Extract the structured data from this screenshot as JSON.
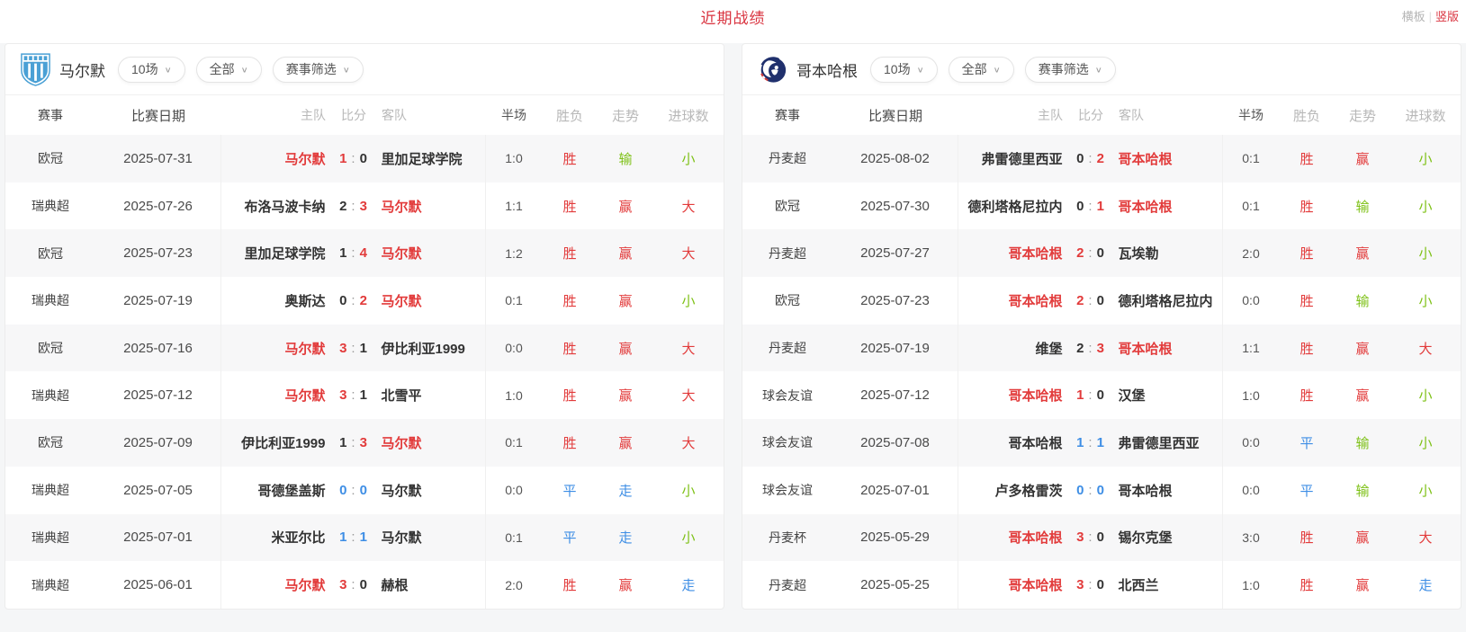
{
  "page": {
    "title": "近期战绩",
    "layout_toggle": {
      "horizontal": "横板",
      "separator": "|",
      "vertical": "竖版"
    }
  },
  "colors": {
    "title_red": "#d9333f",
    "win_red": "#e23b3b",
    "lose_green": "#7ec117",
    "draw_blue": "#3e8ee5",
    "text_dark": "#333333"
  },
  "filters": [
    "10场",
    "全部",
    "赛事筛选"
  ],
  "columns": [
    "赛事",
    "比赛日期",
    "主队",
    "比分",
    "客队",
    "半场",
    "胜负",
    "走势",
    "进球数"
  ],
  "panels": [
    {
      "team": "马尔默",
      "logo": "malmo-crest",
      "rows": [
        {
          "event": "欧冠",
          "date": "2025-07-31",
          "home": "马尔默",
          "home_color": "red",
          "away": "里加足球学院",
          "away_color": "dark",
          "score": {
            "home": "1",
            "away": "0",
            "home_color": "red",
            "away_color": "dark"
          },
          "half": "1:0",
          "result": "胜",
          "result_color": "red",
          "trend": "输",
          "trend_color": "green",
          "goals": "小",
          "goals_color": "green"
        },
        {
          "event": "瑞典超",
          "date": "2025-07-26",
          "home": "布洛马波卡纳",
          "home_color": "dark",
          "away": "马尔默",
          "away_color": "red",
          "score": {
            "home": "2",
            "away": "3",
            "home_color": "dark",
            "away_color": "red"
          },
          "half": "1:1",
          "result": "胜",
          "result_color": "red",
          "trend": "赢",
          "trend_color": "red",
          "goals": "大",
          "goals_color": "red"
        },
        {
          "event": "欧冠",
          "date": "2025-07-23",
          "home": "里加足球学院",
          "home_color": "dark",
          "away": "马尔默",
          "away_color": "red",
          "score": {
            "home": "1",
            "away": "4",
            "home_color": "dark",
            "away_color": "red"
          },
          "half": "1:2",
          "result": "胜",
          "result_color": "red",
          "trend": "赢",
          "trend_color": "red",
          "goals": "大",
          "goals_color": "red"
        },
        {
          "event": "瑞典超",
          "date": "2025-07-19",
          "home": "奥斯达",
          "home_color": "dark",
          "away": "马尔默",
          "away_color": "red",
          "score": {
            "home": "0",
            "away": "2",
            "home_color": "dark",
            "away_color": "red"
          },
          "half": "0:1",
          "result": "胜",
          "result_color": "red",
          "trend": "赢",
          "trend_color": "red",
          "goals": "小",
          "goals_color": "green"
        },
        {
          "event": "欧冠",
          "date": "2025-07-16",
          "home": "马尔默",
          "home_color": "red",
          "away": "伊比利亚1999",
          "away_color": "dark",
          "score": {
            "home": "3",
            "away": "1",
            "home_color": "red",
            "away_color": "dark"
          },
          "half": "0:0",
          "result": "胜",
          "result_color": "red",
          "trend": "赢",
          "trend_color": "red",
          "goals": "大",
          "goals_color": "red"
        },
        {
          "event": "瑞典超",
          "date": "2025-07-12",
          "home": "马尔默",
          "home_color": "red",
          "away": "北雪平",
          "away_color": "dark",
          "score": {
            "home": "3",
            "away": "1",
            "home_color": "red",
            "away_color": "dark"
          },
          "half": "1:0",
          "result": "胜",
          "result_color": "red",
          "trend": "赢",
          "trend_color": "red",
          "goals": "大",
          "goals_color": "red"
        },
        {
          "event": "欧冠",
          "date": "2025-07-09",
          "home": "伊比利亚1999",
          "home_color": "dark",
          "away": "马尔默",
          "away_color": "red",
          "score": {
            "home": "1",
            "away": "3",
            "home_color": "dark",
            "away_color": "red"
          },
          "half": "0:1",
          "result": "胜",
          "result_color": "red",
          "trend": "赢",
          "trend_color": "red",
          "goals": "大",
          "goals_color": "red"
        },
        {
          "event": "瑞典超",
          "date": "2025-07-05",
          "home": "哥德堡盖斯",
          "home_color": "dark",
          "away": "马尔默",
          "away_color": "dark",
          "score": {
            "home": "0",
            "away": "0",
            "home_color": "blue",
            "away_color": "blue"
          },
          "half": "0:0",
          "result": "平",
          "result_color": "blue",
          "trend": "走",
          "trend_color": "blue",
          "goals": "小",
          "goals_color": "green"
        },
        {
          "event": "瑞典超",
          "date": "2025-07-01",
          "home": "米亚尔比",
          "home_color": "dark",
          "away": "马尔默",
          "away_color": "dark",
          "score": {
            "home": "1",
            "away": "1",
            "home_color": "blue",
            "away_color": "blue"
          },
          "half": "0:1",
          "result": "平",
          "result_color": "blue",
          "trend": "走",
          "trend_color": "blue",
          "goals": "小",
          "goals_color": "green"
        },
        {
          "event": "瑞典超",
          "date": "2025-06-01",
          "home": "马尔默",
          "home_color": "red",
          "away": "赫根",
          "away_color": "dark",
          "score": {
            "home": "3",
            "away": "0",
            "home_color": "red",
            "away_color": "dark"
          },
          "half": "2:0",
          "result": "胜",
          "result_color": "red",
          "trend": "赢",
          "trend_color": "red",
          "goals": "走",
          "goals_color": "blue"
        }
      ]
    },
    {
      "team": "哥本哈根",
      "logo": "copenhagen-crest",
      "rows": [
        {
          "event": "丹麦超",
          "date": "2025-08-02",
          "home": "弗雷德里西亚",
          "home_color": "dark",
          "away": "哥本哈根",
          "away_color": "red",
          "score": {
            "home": "0",
            "away": "2",
            "home_color": "dark",
            "away_color": "red"
          },
          "half": "0:1",
          "result": "胜",
          "result_color": "red",
          "trend": "赢",
          "trend_color": "red",
          "goals": "小",
          "goals_color": "green"
        },
        {
          "event": "欧冠",
          "date": "2025-07-30",
          "home": "德利塔格尼拉内",
          "home_color": "dark",
          "away": "哥本哈根",
          "away_color": "red",
          "score": {
            "home": "0",
            "away": "1",
            "home_color": "dark",
            "away_color": "red"
          },
          "half": "0:1",
          "result": "胜",
          "result_color": "red",
          "trend": "输",
          "trend_color": "green",
          "goals": "小",
          "goals_color": "green"
        },
        {
          "event": "丹麦超",
          "date": "2025-07-27",
          "home": "哥本哈根",
          "home_color": "red",
          "away": "瓦埃勒",
          "away_color": "dark",
          "score": {
            "home": "2",
            "away": "0",
            "home_color": "red",
            "away_color": "dark"
          },
          "half": "2:0",
          "result": "胜",
          "result_color": "red",
          "trend": "赢",
          "trend_color": "red",
          "goals": "小",
          "goals_color": "green"
        },
        {
          "event": "欧冠",
          "date": "2025-07-23",
          "home": "哥本哈根",
          "home_color": "red",
          "away": "德利塔格尼拉内",
          "away_color": "dark",
          "score": {
            "home": "2",
            "away": "0",
            "home_color": "red",
            "away_color": "dark"
          },
          "half": "0:0",
          "result": "胜",
          "result_color": "red",
          "trend": "输",
          "trend_color": "green",
          "goals": "小",
          "goals_color": "green"
        },
        {
          "event": "丹麦超",
          "date": "2025-07-19",
          "home": "维堡",
          "home_color": "dark",
          "away": "哥本哈根",
          "away_color": "red",
          "score": {
            "home": "2",
            "away": "3",
            "home_color": "dark",
            "away_color": "red"
          },
          "half": "1:1",
          "result": "胜",
          "result_color": "red",
          "trend": "赢",
          "trend_color": "red",
          "goals": "大",
          "goals_color": "red"
        },
        {
          "event": "球会友谊",
          "date": "2025-07-12",
          "home": "哥本哈根",
          "home_color": "red",
          "away": "汉堡",
          "away_color": "dark",
          "score": {
            "home": "1",
            "away": "0",
            "home_color": "red",
            "away_color": "dark"
          },
          "half": "1:0",
          "result": "胜",
          "result_color": "red",
          "trend": "赢",
          "trend_color": "red",
          "goals": "小",
          "goals_color": "green"
        },
        {
          "event": "球会友谊",
          "date": "2025-07-08",
          "home": "哥本哈根",
          "home_color": "dark",
          "away": "弗雷德里西亚",
          "away_color": "dark",
          "score": {
            "home": "1",
            "away": "1",
            "home_color": "blue",
            "away_color": "blue"
          },
          "half": "0:0",
          "result": "平",
          "result_color": "blue",
          "trend": "输",
          "trend_color": "green",
          "goals": "小",
          "goals_color": "green"
        },
        {
          "event": "球会友谊",
          "date": "2025-07-01",
          "home": "卢多格雷茨",
          "home_color": "dark",
          "away": "哥本哈根",
          "away_color": "dark",
          "score": {
            "home": "0",
            "away": "0",
            "home_color": "blue",
            "away_color": "blue"
          },
          "half": "0:0",
          "result": "平",
          "result_color": "blue",
          "trend": "输",
          "trend_color": "green",
          "goals": "小",
          "goals_color": "green"
        },
        {
          "event": "丹麦杯",
          "date": "2025-05-29",
          "home": "哥本哈根",
          "home_color": "red",
          "away": "锡尔克堡",
          "away_color": "dark",
          "score": {
            "home": "3",
            "away": "0",
            "home_color": "red",
            "away_color": "dark"
          },
          "half": "3:0",
          "result": "胜",
          "result_color": "red",
          "trend": "赢",
          "trend_color": "red",
          "goals": "大",
          "goals_color": "red"
        },
        {
          "event": "丹麦超",
          "date": "2025-05-25",
          "home": "哥本哈根",
          "home_color": "red",
          "away": "北西兰",
          "away_color": "dark",
          "score": {
            "home": "3",
            "away": "0",
            "home_color": "red",
            "away_color": "dark"
          },
          "half": "1:0",
          "result": "胜",
          "result_color": "red",
          "trend": "赢",
          "trend_color": "red",
          "goals": "走",
          "goals_color": "blue"
        }
      ]
    }
  ]
}
